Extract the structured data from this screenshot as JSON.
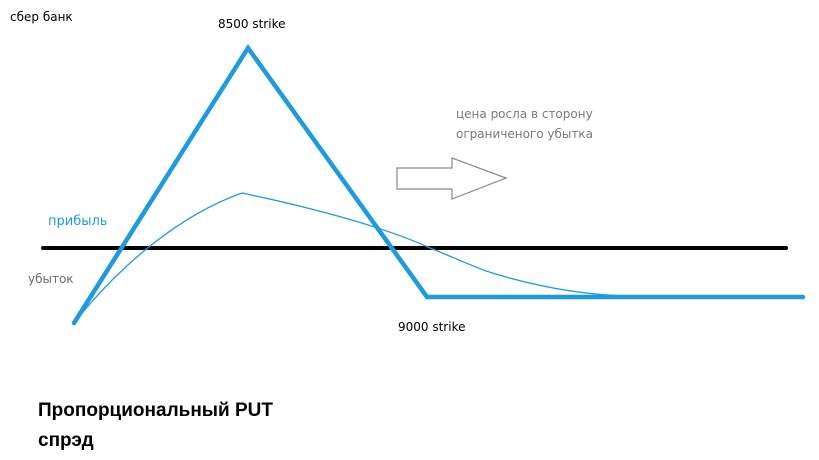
{
  "bank_label": "сбер банк",
  "strike_high": "8500 strike",
  "strike_low": "9000 strike",
  "note_lines": [
    "цена росла в сторону",
    "ограниченого убытка"
  ],
  "profit_label": "прибыль",
  "loss_label": "убыток",
  "title_lines": [
    "Пропорциональный PUT",
    "спрэд"
  ],
  "colors": {
    "payoff_line": "#1e9be0",
    "zero_line": "#000000",
    "arrow_outline": "#8a8a8a",
    "note_text": "#7a7a7a",
    "profit_text": "#1e9be0",
    "loss_text": "#6e6e6e"
  },
  "arrow_icon": "right-arrow-outline-icon"
}
